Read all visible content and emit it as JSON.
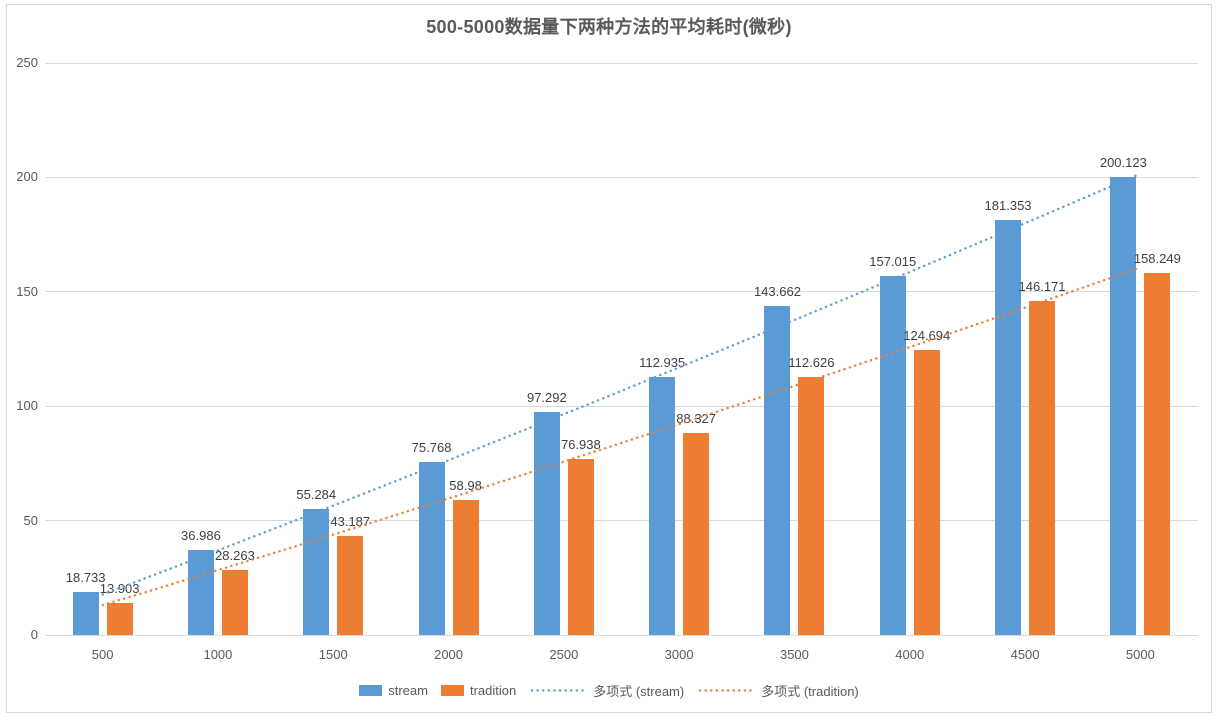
{
  "chart_data": {
    "type": "bar",
    "title": "500-5000数据量下两种方法的平均耗时(微秒)",
    "categories": [
      "500",
      "1000",
      "1500",
      "2000",
      "2500",
      "3000",
      "3500",
      "4000",
      "4500",
      "5000"
    ],
    "series": [
      {
        "name": "stream",
        "color": "#5B9BD5",
        "values": [
          18.733,
          36.986,
          55.284,
          75.768,
          97.292,
          112.935,
          143.662,
          157.015,
          181.353,
          200.123
        ],
        "data_labels": [
          "18.733",
          "36.986",
          "55.284",
          "75.768",
          "97.292",
          "112.935",
          "143.662",
          "157.015",
          "181.353",
          "200.123"
        ]
      },
      {
        "name": "tradition",
        "color": "#ED7D31",
        "values": [
          13.903,
          28.263,
          43.187,
          58.98,
          76.938,
          88.327,
          112.626,
          124.694,
          146.171,
          158.249
        ],
        "data_labels": [
          "13.903",
          "28.263",
          "43.187",
          "58.98",
          "76.938",
          "88.327",
          "112.626",
          "124.694",
          "146.171",
          "158.249"
        ]
      }
    ],
    "trendlines": [
      {
        "label": "多项式 (stream)",
        "series": "stream",
        "color": "#5B9BD5",
        "style": "dotted",
        "fit": "polynomial-2"
      },
      {
        "label": "多项式 (tradition)",
        "series": "tradition",
        "color": "#ED7D31",
        "style": "dotted",
        "fit": "polynomial-2"
      }
    ],
    "yticks": [
      "0",
      "50",
      "100",
      "150",
      "200",
      "250"
    ],
    "ylim": [
      0,
      250
    ],
    "xlabel": "",
    "ylabel": "",
    "grid": true,
    "legend_position": "bottom",
    "colors": {
      "grid": "#D9D9D9",
      "frame_border": "#D9D9D9",
      "axis_text": "#595959",
      "data_label_text": "#404040",
      "title_text": "#595959"
    }
  }
}
